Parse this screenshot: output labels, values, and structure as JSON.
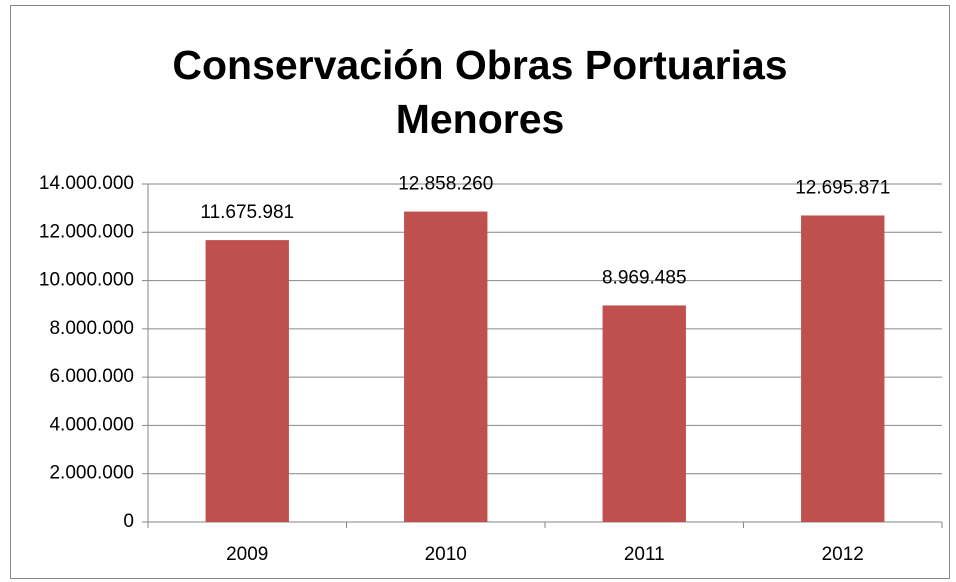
{
  "chart_data": {
    "type": "bar",
    "title": "Conservación Obras Portuarias Menores",
    "categories": [
      "2009",
      "2010",
      "2011",
      "2012"
    ],
    "values": [
      11675981,
      12858260,
      8969485,
      12695871
    ],
    "value_labels": [
      "11.675.981",
      "12.858.260",
      "8.969.485",
      "12.695.871"
    ],
    "color": "#c0504d",
    "ylim": [
      0,
      14000000
    ],
    "yticks": [
      0,
      {
        "value": 2000000,
        "label": "2.000.000"
      },
      {
        "value": 4000000,
        "label": "4.000.000"
      },
      {
        "value": 6000000,
        "label": "6.000.000"
      },
      {
        "value": 8000000,
        "label": "8.000.000"
      },
      {
        "value": 10000000,
        "label": "10.000.000"
      },
      {
        "value": 12000000,
        "label": "12.000.000"
      },
      {
        "value": 14000000,
        "label": "14.000.000"
      }
    ],
    "grid": true
  }
}
